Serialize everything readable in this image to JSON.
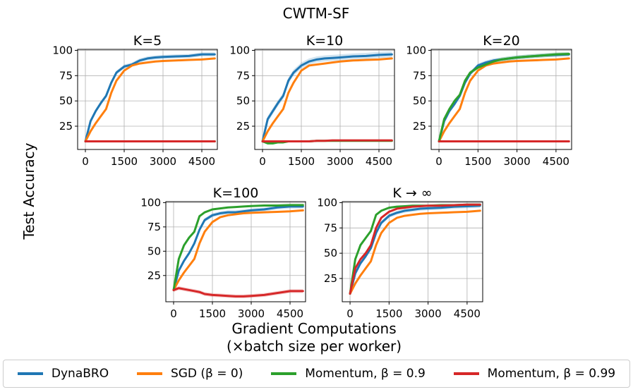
{
  "figure": {
    "suptitle": "CWTM-SF",
    "ylabel": "Test Accuracy",
    "xlabel_line1": "Gradient Computations",
    "xlabel_line2": "(×batch size per worker)"
  },
  "legend": [
    {
      "name": "DynaBRO",
      "color": "#1f77b4"
    },
    {
      "name": "SGD (β = 0)",
      "color": "#ff7f0e"
    },
    {
      "name": "Momentum, β = 0.9",
      "color": "#2ca02c"
    },
    {
      "name": "Momentum, β = 0.99",
      "color": "#d62728"
    }
  ],
  "chart_data": [
    {
      "type": "line",
      "title": "K=5",
      "xlim": [
        -300,
        5100
      ],
      "ylim": [
        2,
        101
      ],
      "xticks": [
        0,
        1500,
        3000,
        4500
      ],
      "yticks": [
        25,
        50,
        75,
        100
      ],
      "x": [
        0,
        200,
        400,
        600,
        800,
        1000,
        1200,
        1500,
        1800,
        2100,
        2400,
        2700,
        3000,
        3500,
        4000,
        4500,
        5000
      ],
      "series": [
        {
          "name": "DynaBRO",
          "color": "#1f77b4",
          "values": [
            10,
            30,
            40,
            48,
            55,
            68,
            78,
            84,
            86,
            90,
            92,
            93,
            93.5,
            94,
            94.5,
            96,
            96
          ],
          "band": 2
        },
        {
          "name": "SGD (β = 0)",
          "color": "#ff7f0e",
          "values": [
            10,
            20,
            28,
            35,
            42,
            58,
            70,
            80,
            85,
            87,
            88,
            89,
            89.5,
            90,
            90.5,
            91,
            92
          ],
          "band": 0
        },
        {
          "name": "Momentum, β = 0.9",
          "color": "#2ca02c",
          "values": [
            10,
            10,
            10,
            10,
            10,
            10,
            10,
            10,
            10,
            10,
            10,
            10,
            10,
            10,
            10,
            10,
            10
          ],
          "band": 0
        },
        {
          "name": "Momentum, β = 0.99",
          "color": "#d62728",
          "values": [
            10,
            10,
            10,
            10,
            10,
            10,
            10,
            10,
            10,
            10,
            10,
            10,
            10,
            10,
            10,
            10,
            10
          ],
          "band": 0
        }
      ]
    },
    {
      "type": "line",
      "title": "K=10",
      "xlim": [
        -300,
        5100
      ],
      "ylim": [
        2,
        101
      ],
      "xticks": [
        0,
        1500,
        3000,
        4500
      ],
      "yticks": [
        25,
        50,
        75,
        100
      ],
      "x": [
        0,
        200,
        400,
        600,
        800,
        1000,
        1200,
        1500,
        1800,
        2100,
        2400,
        2700,
        3000,
        3500,
        4000,
        4500,
        5000
      ],
      "series": [
        {
          "name": "DynaBRO",
          "color": "#1f77b4",
          "values": [
            10,
            32,
            40,
            48,
            55,
            70,
            78,
            85,
            89,
            91,
            92,
            92.5,
            93,
            94,
            94.5,
            95.5,
            96
          ],
          "band": 3
        },
        {
          "name": "SGD (β = 0)",
          "color": "#ff7f0e",
          "values": [
            10,
            20,
            28,
            35,
            42,
            58,
            68,
            80,
            85,
            86,
            87,
            88,
            89,
            90,
            90.5,
            91,
            92
          ],
          "band": 0
        },
        {
          "name": "Momentum, β = 0.9",
          "color": "#2ca02c",
          "values": [
            10,
            8,
            8,
            9,
            9,
            10,
            10,
            10,
            10,
            10.5,
            10.5,
            10.5,
            10.5,
            10.5,
            10.5,
            10.5,
            10.5
          ],
          "band": 0
        },
        {
          "name": "Momentum, β = 0.99",
          "color": "#d62728",
          "values": [
            10,
            10,
            10,
            10,
            10,
            10,
            10,
            10,
            10,
            10.5,
            10.5,
            11,
            11,
            11,
            11,
            11,
            11
          ],
          "band": 0
        }
      ]
    },
    {
      "type": "line",
      "title": "K=20",
      "xlim": [
        -300,
        5100
      ],
      "ylim": [
        2,
        101
      ],
      "xticks": [
        0,
        1500,
        3000,
        4500
      ],
      "yticks": [
        25,
        50,
        75,
        100
      ],
      "x": [
        0,
        200,
        400,
        600,
        800,
        1000,
        1200,
        1500,
        1800,
        2100,
        2400,
        2700,
        3000,
        3500,
        4000,
        4500,
        5000
      ],
      "series": [
        {
          "name": "DynaBRO",
          "color": "#1f77b4",
          "values": [
            10,
            30,
            40,
            47,
            55,
            68,
            77,
            85,
            88,
            90,
            91,
            92,
            93,
            94,
            95,
            95.5,
            96
          ],
          "band": 2
        },
        {
          "name": "SGD (β = 0)",
          "color": "#ff7f0e",
          "values": [
            10,
            20,
            28,
            35,
            42,
            58,
            70,
            80,
            85,
            87,
            88,
            89,
            89.5,
            90,
            90.5,
            91,
            92
          ],
          "band": 0
        },
        {
          "name": "Momentum, β = 0.9",
          "color": "#2ca02c",
          "values": [
            10,
            32,
            42,
            50,
            56,
            70,
            78,
            83,
            86,
            89,
            91,
            92,
            93,
            94,
            95,
            96,
            96.5
          ],
          "band": 2
        },
        {
          "name": "Momentum, β = 0.99",
          "color": "#d62728",
          "values": [
            10,
            10,
            10,
            10,
            10,
            10,
            10,
            10,
            10,
            10,
            10,
            10,
            10,
            10,
            10,
            10,
            10
          ],
          "band": 0
        }
      ]
    },
    {
      "type": "line",
      "title": "K=100",
      "xlim": [
        -300,
        5100
      ],
      "ylim": [
        -2,
        101
      ],
      "xticks": [
        0,
        1500,
        3000,
        4500
      ],
      "yticks": [
        25,
        50,
        75,
        100
      ],
      "x": [
        0,
        200,
        400,
        600,
        800,
        1000,
        1200,
        1500,
        1800,
        2100,
        2400,
        2700,
        3000,
        3500,
        4000,
        4500,
        5000
      ],
      "series": [
        {
          "name": "DynaBRO",
          "color": "#1f77b4",
          "values": [
            10,
            30,
            40,
            48,
            58,
            72,
            82,
            87,
            89,
            90,
            90,
            91,
            92,
            93,
            95,
            96,
            96
          ],
          "band": 2
        },
        {
          "name": "SGD (β = 0)",
          "color": "#ff7f0e",
          "values": [
            10,
            20,
            28,
            35,
            42,
            58,
            70,
            80,
            85,
            87,
            88,
            89,
            89.5,
            90,
            90.5,
            91,
            92
          ],
          "band": 0
        },
        {
          "name": "Momentum, β = 0.9",
          "color": "#2ca02c",
          "values": [
            10,
            42,
            56,
            64,
            70,
            86,
            90,
            93,
            94,
            95,
            95.5,
            96,
            96.5,
            97,
            97,
            97.5,
            97.5
          ],
          "band": 0
        },
        {
          "name": "Momentum, β = 0.99",
          "color": "#d62728",
          "values": [
            10,
            12,
            11,
            10,
            9,
            8,
            6,
            5,
            4.5,
            4,
            3.5,
            3.5,
            4,
            5,
            7,
            9,
            9
          ],
          "band": 2
        }
      ]
    },
    {
      "type": "line",
      "title": "K → ∞",
      "xlim": [
        -300,
        5100
      ],
      "ylim": [
        2,
        101
      ],
      "xticks": [
        0,
        1500,
        3000,
        4500
      ],
      "yticks": [
        25,
        50,
        75,
        100
      ],
      "x": [
        0,
        200,
        400,
        600,
        800,
        1000,
        1200,
        1500,
        1800,
        2100,
        2400,
        2700,
        3000,
        3500,
        4000,
        4500,
        5000
      ],
      "series": [
        {
          "name": "DynaBRO",
          "color": "#1f77b4",
          "values": [
            10,
            30,
            40,
            47,
            55,
            70,
            80,
            87,
            90,
            92,
            93,
            94,
            94.5,
            95,
            96,
            96.5,
            97
          ],
          "band": 2
        },
        {
          "name": "SGD (β = 0)",
          "color": "#ff7f0e",
          "values": [
            10,
            20,
            28,
            35,
            42,
            58,
            70,
            80,
            85,
            87,
            88,
            89,
            89.5,
            90,
            90.5,
            91,
            92
          ],
          "band": 0
        },
        {
          "name": "Momentum, β = 0.9",
          "color": "#2ca02c",
          "values": [
            10,
            44,
            58,
            65,
            72,
            88,
            92,
            95,
            96,
            96.5,
            97,
            97,
            97,
            97.5,
            97.5,
            98,
            98
          ],
          "band": 0
        },
        {
          "name": "Momentum, β = 0.99",
          "color": "#d62728",
          "values": [
            10,
            35,
            44,
            50,
            58,
            75,
            85,
            91,
            94,
            95,
            96,
            96.5,
            97,
            97,
            97.5,
            98,
            98
          ],
          "band": 0
        }
      ]
    }
  ]
}
